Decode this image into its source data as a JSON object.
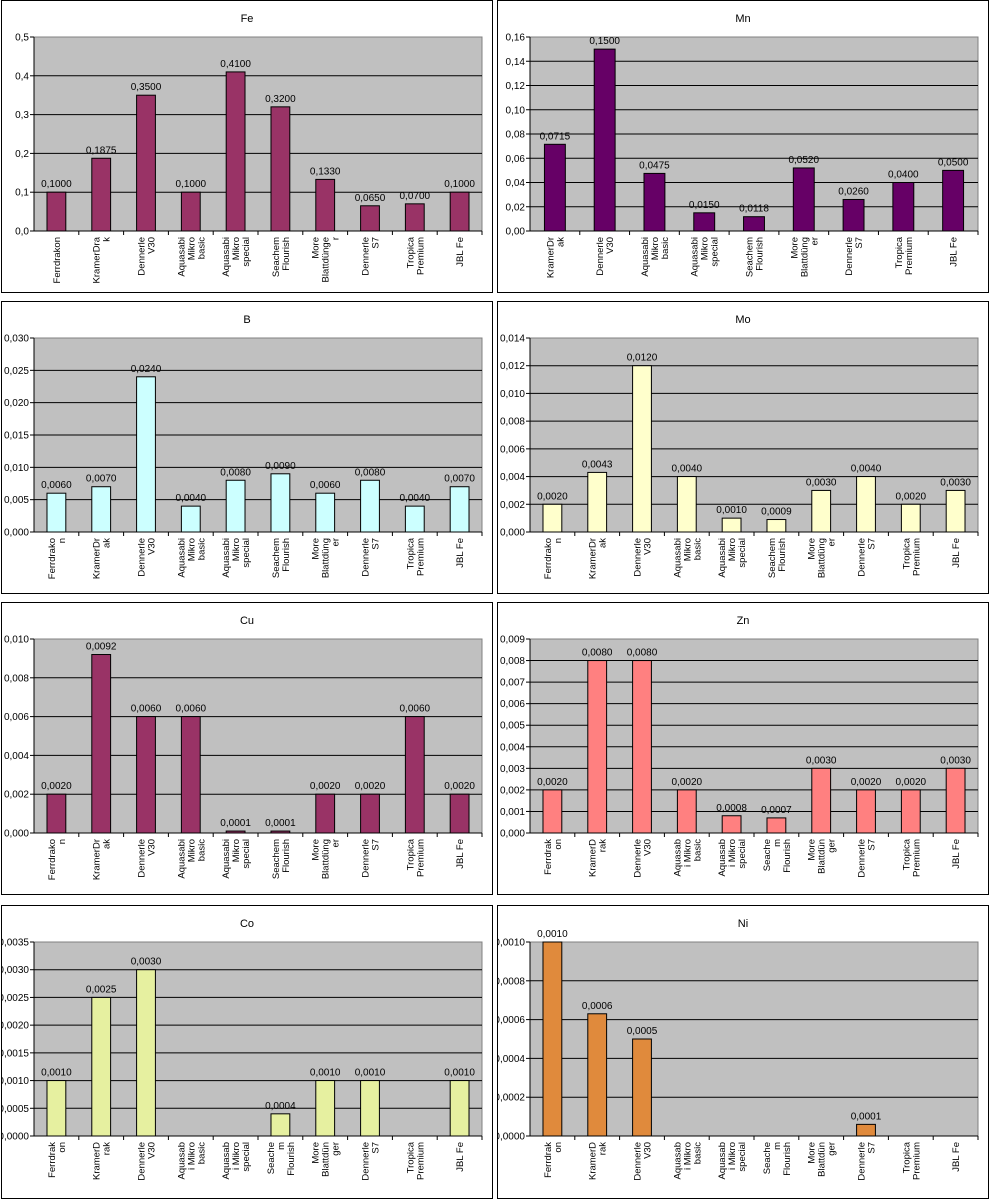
{
  "chart_data": [
    {
      "type": "bar",
      "title": "Fe",
      "color": "#993366",
      "ylim": [
        0,
        0.5
      ],
      "ystep": 0.1,
      "ydecimals": 1,
      "categories": [
        [
          "Ferrdrakon"
        ],
        [
          "KramerDra",
          "k"
        ],
        [
          "Dennerle",
          "V30"
        ],
        [
          "Aquasabi",
          "Mikro",
          "basic"
        ],
        [
          "Aquasabi",
          "Mikro",
          "special"
        ],
        [
          "Seachem",
          "Flourish"
        ],
        [
          "More",
          "Blattdünge",
          "r"
        ],
        [
          "Dennerle",
          "S7"
        ],
        [
          "Tropica",
          "Premium"
        ],
        [
          "JBL Fe"
        ]
      ],
      "values": [
        0.1,
        0.1875,
        0.35,
        0.1,
        0.41,
        0.32,
        0.133,
        0.065,
        0.07,
        0.1
      ],
      "labels": [
        "0,1000",
        "0,1875",
        "0,3500",
        "0,1000",
        "0,4100",
        "0,3200",
        "0,1330",
        "0,0650",
        "0,0700",
        "0,1000"
      ]
    },
    {
      "type": "bar",
      "title": "Mn",
      "color": "#660066",
      "ylim": [
        0,
        0.16
      ],
      "ystep": 0.02,
      "ydecimals": 2,
      "categories": [
        [
          "KramerDr",
          "ak"
        ],
        [
          "Dennerle",
          "V30"
        ],
        [
          "Aquasabi",
          "Mikro",
          "basic"
        ],
        [
          "Aquasabi",
          "Mikro",
          "special"
        ],
        [
          "Seachem",
          "Flourish"
        ],
        [
          "More",
          "Blattdüng",
          "er"
        ],
        [
          "Dennerle",
          "S7"
        ],
        [
          "Tropica",
          "Premium"
        ],
        [
          "JBL Fe"
        ]
      ],
      "values": [
        0.0715,
        0.15,
        0.0475,
        0.015,
        0.0118,
        0.052,
        0.026,
        0.04,
        0.05
      ],
      "labels": [
        "0,0715",
        "0,1500",
        "0,0475",
        "0,0150",
        "0,0118",
        "0,0520",
        "0,0260",
        "0,0400",
        "0,0500"
      ]
    },
    {
      "type": "bar",
      "title": "B",
      "color": "#CCFFFF",
      "ylim": [
        0,
        0.03
      ],
      "ystep": 0.005,
      "ydecimals": 3,
      "categories": [
        [
          "Ferrdrako",
          "n"
        ],
        [
          "KramerDr",
          "ak"
        ],
        [
          "Dennerle",
          "V30"
        ],
        [
          "Aquasabi",
          "Mikro",
          "basic"
        ],
        [
          "Aquasabi",
          "Mikro",
          "special"
        ],
        [
          "Seachem",
          "Flourish"
        ],
        [
          "More",
          "Blattdüng",
          "er"
        ],
        [
          "Dennerle",
          "S7"
        ],
        [
          "Tropica",
          "Premium"
        ],
        [
          "JBL Fe"
        ]
      ],
      "values": [
        0.006,
        0.007,
        0.024,
        0.004,
        0.008,
        0.009,
        0.006,
        0.008,
        0.004,
        0.007
      ],
      "labels": [
        "0,0060",
        "0,0070",
        "0,0240",
        "0,0040",
        "0,0080",
        "0,0090",
        "0,0060",
        "0,0080",
        "0,0040",
        "0,0070"
      ]
    },
    {
      "type": "bar",
      "title": "Mo",
      "color": "#FFFFCC",
      "ylim": [
        0,
        0.014
      ],
      "ystep": 0.002,
      "ydecimals": 3,
      "categories": [
        [
          "Ferrdrako",
          "n"
        ],
        [
          "KramerDr",
          "ak"
        ],
        [
          "Dennerle",
          "V30"
        ],
        [
          "Aquasabi",
          "Mikro",
          "basic"
        ],
        [
          "Aquasabi",
          "Mikro",
          "special"
        ],
        [
          "Seachem",
          "Flourish"
        ],
        [
          "More",
          "Blattdüng",
          "er"
        ],
        [
          "Dennerle",
          "S7"
        ],
        [
          "Tropica",
          "Premium"
        ],
        [
          "JBL Fe"
        ]
      ],
      "values": [
        0.002,
        0.0043,
        0.012,
        0.004,
        0.001,
        0.0009,
        0.003,
        0.004,
        0.002,
        0.003
      ],
      "labels": [
        "0,0020",
        "0,0043",
        "0,0120",
        "0,0040",
        "0,0010",
        "0,0009",
        "0,0030",
        "0,0040",
        "0,0020",
        "0,0030"
      ]
    },
    {
      "type": "bar",
      "title": "Cu",
      "color": "#993366",
      "ylim": [
        0,
        0.01
      ],
      "ystep": 0.002,
      "ydecimals": 3,
      "categories": [
        [
          "Ferrdrako",
          "n"
        ],
        [
          "KramerDr",
          "ak"
        ],
        [
          "Dennerle",
          "V30"
        ],
        [
          "Aquasabi",
          "Mikro",
          "basic"
        ],
        [
          "Aquasabi",
          "Mikro",
          "special"
        ],
        [
          "Seachem",
          "Flourish"
        ],
        [
          "More",
          "Blattdüng",
          "er"
        ],
        [
          "Dennerle",
          "S7"
        ],
        [
          "Tropica",
          "Premium"
        ],
        [
          "JBL Fe"
        ]
      ],
      "values": [
        0.002,
        0.0092,
        0.006,
        0.006,
        0.0001,
        0.0001,
        0.002,
        0.002,
        0.006,
        0.002
      ],
      "labels": [
        "0,0020",
        "0,0092",
        "0,0060",
        "0,0060",
        "0,0001",
        "0,0001",
        "0,0020",
        "0,0020",
        "0,0060",
        "0,0020"
      ]
    },
    {
      "type": "bar",
      "title": "Zn",
      "color": "#FF8080",
      "ylim": [
        0,
        0.009
      ],
      "ystep": 0.001,
      "ydecimals": 3,
      "categories": [
        [
          "Ferrdrak",
          "on"
        ],
        [
          "KramerD",
          "rak"
        ],
        [
          "Dennerle",
          "V30"
        ],
        [
          "Aquasab",
          "i Mikro",
          "basic"
        ],
        [
          "Aquasab",
          "i Mikro",
          "special"
        ],
        [
          "Seache",
          "m",
          "Flourish"
        ],
        [
          "More",
          "Blattdün",
          "ger"
        ],
        [
          "Dennerle",
          "S7"
        ],
        [
          "Tropica",
          "Premium"
        ],
        [
          "JBL Fe"
        ]
      ],
      "values": [
        0.002,
        0.008,
        0.008,
        0.002,
        0.0008,
        0.0007,
        0.003,
        0.002,
        0.002,
        0.003
      ],
      "labels": [
        "0,0020",
        "0,0080",
        "0,0080",
        "0,0020",
        "0,0008",
        "0,0007",
        "0,0030",
        "0,0020",
        "0,0020",
        "0,0030"
      ]
    },
    {
      "type": "bar",
      "title": "Co",
      "color": "#E6F0A0",
      "ylim": [
        0,
        0.0035
      ],
      "ystep": 0.0005,
      "ydecimals": 4,
      "categories": [
        [
          "Ferrdrak",
          "on"
        ],
        [
          "KramerD",
          "rak"
        ],
        [
          "Dennerle",
          "V30"
        ],
        [
          "Aquasab",
          "i Mikro",
          "basic"
        ],
        [
          "Aquasab",
          "i Mikro",
          "special"
        ],
        [
          "Seache",
          "m",
          "Flourish"
        ],
        [
          "More",
          "Blattdün",
          "ger"
        ],
        [
          "Dennerle",
          "S7"
        ],
        [
          "Tropica",
          "Premium"
        ],
        [
          "JBL Fe"
        ]
      ],
      "values": [
        0.001,
        0.0025,
        0.003,
        null,
        null,
        0.0004,
        0.001,
        0.001,
        null,
        0.001
      ],
      "labels": [
        "0,0010",
        "0,0025",
        "0,0030",
        "",
        "",
        "0,0004",
        "0,0010",
        "0,0010",
        "",
        "0,0010"
      ]
    },
    {
      "type": "bar",
      "title": "Ni",
      "color": "#E08A3C",
      "ylim": [
        0,
        0.001
      ],
      "ystep": 0.0002,
      "ydecimals": 4,
      "categories": [
        [
          "Ferrdrak",
          "on"
        ],
        [
          "KramerD",
          "rak"
        ],
        [
          "Dennerle",
          "V30"
        ],
        [
          "Aquasab",
          "i Mikro",
          "basic"
        ],
        [
          "Aquasab",
          "i Mikro",
          "special"
        ],
        [
          "Seache",
          "m",
          "Flourish"
        ],
        [
          "More",
          "Blattdün",
          "ger"
        ],
        [
          "Dennerle",
          "S7"
        ],
        [
          "Tropica",
          "Premium"
        ],
        [
          "JBL Fe"
        ]
      ],
      "values": [
        0.001,
        0.00063,
        0.0005,
        null,
        null,
        null,
        null,
        6e-05,
        null,
        null
      ],
      "labels": [
        "0,0010",
        "0,0006",
        "0,0005",
        "",
        "",
        "",
        "",
        "0,0001",
        "",
        ""
      ]
    }
  ]
}
